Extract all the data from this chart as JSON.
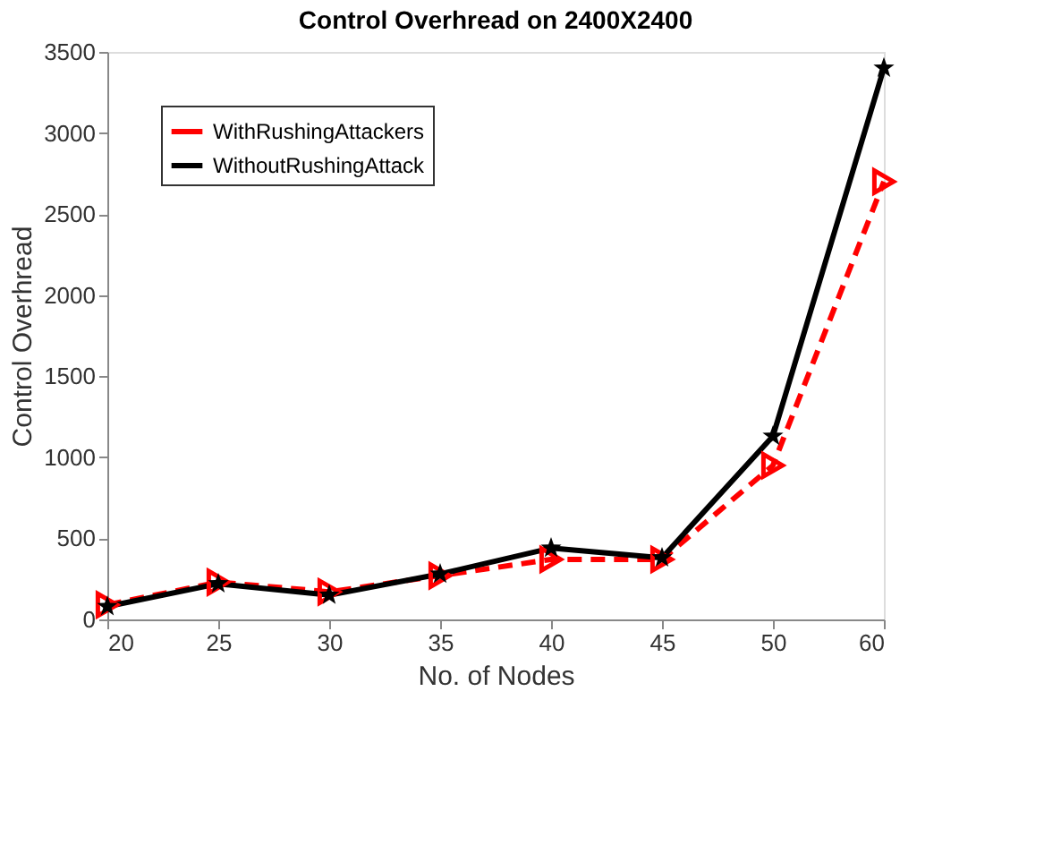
{
  "chart_data": {
    "type": "line",
    "title": "Control Overhread on 2400X2400",
    "xlabel": "No. of Nodes",
    "ylabel": "Control Overhread",
    "categories": [
      "20",
      "25",
      "30",
      "35",
      "40",
      "45",
      "50",
      "60"
    ],
    "series": [
      {
        "name": "WithRushingAttackers",
        "color": "#ff0000",
        "marker": "triangle",
        "line_style": "dashed",
        "values": [
          90,
          230,
          170,
          270,
          370,
          370,
          950,
          2700
        ]
      },
      {
        "name": "WithoutRushingAttack",
        "color": "#000000",
        "marker": "star",
        "line_style": "solid",
        "values": [
          80,
          220,
          150,
          280,
          440,
          380,
          1130,
          3400
        ]
      }
    ],
    "ylim": [
      0,
      3500
    ],
    "yticks": [
      0,
      500,
      1000,
      1500,
      2000,
      2500,
      3000,
      3500
    ],
    "grid": false,
    "legend": "top left"
  }
}
